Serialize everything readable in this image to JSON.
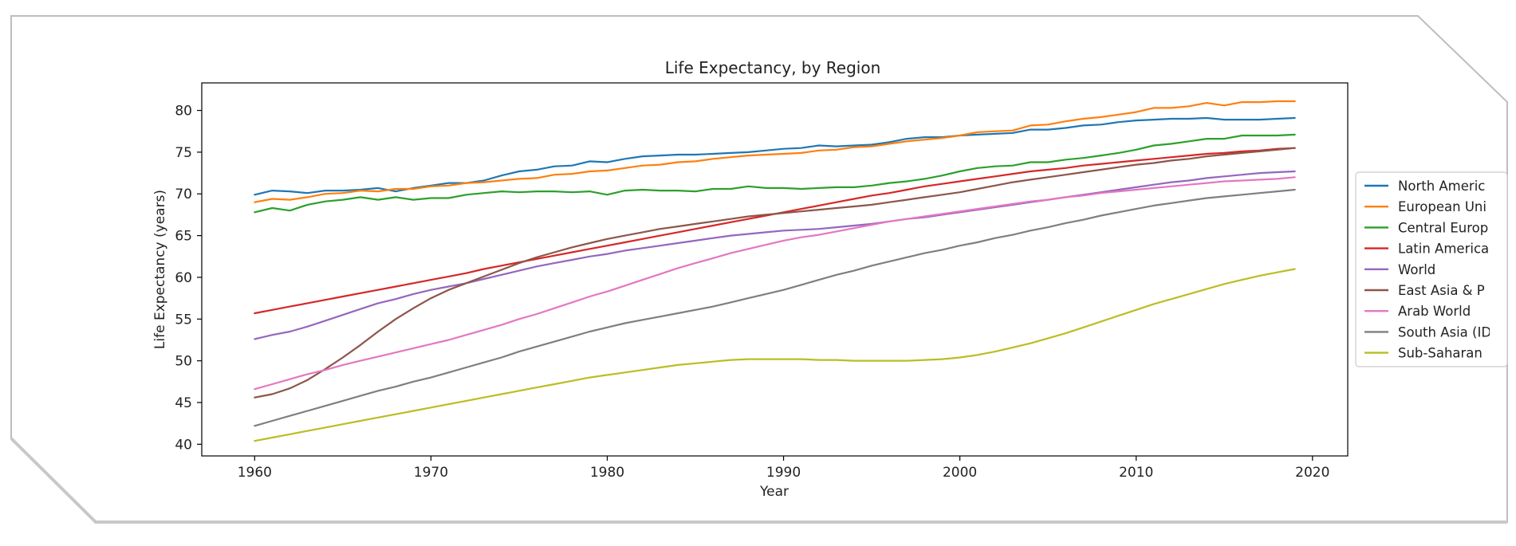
{
  "chart_data": {
    "type": "line",
    "title": "Life Expectancy, by Region",
    "xlabel": "Year",
    "ylabel": "Life Expectancy (years)",
    "xlim": [
      1957,
      2022
    ],
    "ylim": [
      38.6,
      83.3
    ],
    "xticks": [
      1960,
      1970,
      1980,
      1990,
      2000,
      2010,
      2020
    ],
    "yticks": [
      40,
      45,
      50,
      55,
      60,
      65,
      70,
      75,
      80
    ],
    "grid": false,
    "legend_position": "right, outside plot area",
    "x": [
      1960,
      1961,
      1962,
      1963,
      1964,
      1965,
      1966,
      1967,
      1968,
      1969,
      1970,
      1971,
      1972,
      1973,
      1974,
      1975,
      1976,
      1977,
      1978,
      1979,
      1980,
      1981,
      1982,
      1983,
      1984,
      1985,
      1986,
      1987,
      1988,
      1989,
      1990,
      1991,
      1992,
      1993,
      1994,
      1995,
      1996,
      1997,
      1998,
      1999,
      2000,
      2001,
      2002,
      2003,
      2004,
      2005,
      2006,
      2007,
      2008,
      2009,
      2010,
      2011,
      2012,
      2013,
      2014,
      2015,
      2016,
      2017,
      2018,
      2019
    ],
    "series": [
      {
        "name": "North Americ",
        "color": "#1f77b4",
        "values": [
          69.9,
          70.4,
          70.3,
          70.1,
          70.4,
          70.4,
          70.5,
          70.7,
          70.3,
          70.7,
          71.0,
          71.3,
          71.3,
          71.6,
          72.2,
          72.7,
          72.9,
          73.3,
          73.4,
          73.9,
          73.8,
          74.2,
          74.5,
          74.6,
          74.7,
          74.7,
          74.8,
          74.9,
          75.0,
          75.2,
          75.4,
          75.5,
          75.8,
          75.7,
          75.8,
          75.9,
          76.2,
          76.6,
          76.8,
          76.8,
          77.0,
          77.1,
          77.2,
          77.3,
          77.7,
          77.7,
          77.9,
          78.2,
          78.3,
          78.6,
          78.8,
          78.9,
          79.0,
          79.0,
          79.1,
          78.9,
          78.9,
          78.9,
          79.0,
          79.1
        ]
      },
      {
        "name": "European Uni",
        "color": "#ff7f0e",
        "values": [
          69.0,
          69.4,
          69.3,
          69.6,
          70.0,
          70.1,
          70.4,
          70.3,
          70.6,
          70.6,
          70.9,
          71.0,
          71.3,
          71.4,
          71.6,
          71.8,
          71.9,
          72.3,
          72.4,
          72.7,
          72.8,
          73.1,
          73.4,
          73.5,
          73.8,
          73.9,
          74.2,
          74.4,
          74.6,
          74.7,
          74.8,
          74.9,
          75.2,
          75.3,
          75.6,
          75.7,
          76.0,
          76.3,
          76.5,
          76.7,
          77.0,
          77.4,
          77.5,
          77.6,
          78.2,
          78.3,
          78.7,
          79.0,
          79.2,
          79.5,
          79.8,
          80.3,
          80.3,
          80.5,
          80.9,
          80.6,
          81.0,
          81.0,
          81.1,
          81.1
        ]
      },
      {
        "name": "Central Europ",
        "color": "#2ca02c",
        "values": [
          67.8,
          68.3,
          68.0,
          68.7,
          69.1,
          69.3,
          69.6,
          69.3,
          69.6,
          69.3,
          69.5,
          69.5,
          69.9,
          70.1,
          70.3,
          70.2,
          70.3,
          70.3,
          70.2,
          70.3,
          69.9,
          70.4,
          70.5,
          70.4,
          70.4,
          70.3,
          70.6,
          70.6,
          70.9,
          70.7,
          70.7,
          70.6,
          70.7,
          70.8,
          70.8,
          71.0,
          71.3,
          71.5,
          71.8,
          72.2,
          72.7,
          73.1,
          73.3,
          73.4,
          73.8,
          73.8,
          74.1,
          74.3,
          74.6,
          74.9,
          75.3,
          75.8,
          76.0,
          76.3,
          76.6,
          76.6,
          77.0,
          77.0,
          77.0,
          77.1
        ]
      },
      {
        "name": "Latin America",
        "color": "#d62728",
        "values": [
          55.7,
          56.1,
          56.5,
          56.9,
          57.3,
          57.7,
          58.1,
          58.5,
          58.9,
          59.3,
          59.7,
          60.1,
          60.5,
          61.0,
          61.4,
          61.8,
          62.2,
          62.6,
          63.0,
          63.4,
          63.8,
          64.2,
          64.6,
          65.0,
          65.4,
          65.8,
          66.2,
          66.6,
          67.0,
          67.4,
          67.8,
          68.2,
          68.6,
          69.0,
          69.4,
          69.8,
          70.1,
          70.5,
          70.9,
          71.2,
          71.5,
          71.8,
          72.1,
          72.4,
          72.7,
          72.9,
          73.1,
          73.4,
          73.6,
          73.8,
          74.0,
          74.2,
          74.4,
          74.6,
          74.8,
          74.9,
          75.1,
          75.2,
          75.4,
          75.5
        ]
      },
      {
        "name": "World",
        "color": "#9467bd",
        "values": [
          52.6,
          53.1,
          53.5,
          54.1,
          54.8,
          55.5,
          56.2,
          56.9,
          57.4,
          58.0,
          58.5,
          58.9,
          59.3,
          59.8,
          60.3,
          60.8,
          61.3,
          61.7,
          62.1,
          62.5,
          62.8,
          63.2,
          63.5,
          63.8,
          64.1,
          64.4,
          64.7,
          65.0,
          65.2,
          65.4,
          65.6,
          65.7,
          65.8,
          66.0,
          66.2,
          66.4,
          66.7,
          67.0,
          67.2,
          67.5,
          67.8,
          68.1,
          68.4,
          68.7,
          69.0,
          69.3,
          69.6,
          69.9,
          70.2,
          70.5,
          70.8,
          71.1,
          71.4,
          71.6,
          71.9,
          72.1,
          72.3,
          72.5,
          72.6,
          72.7
        ]
      },
      {
        "name": "East Asia & P",
        "color": "#8c564b",
        "values": [
          45.6,
          46.0,
          46.7,
          47.7,
          49.0,
          50.4,
          51.9,
          53.5,
          55.0,
          56.3,
          57.5,
          58.5,
          59.3,
          60.1,
          60.9,
          61.7,
          62.4,
          63.0,
          63.6,
          64.1,
          64.6,
          65.0,
          65.4,
          65.8,
          66.1,
          66.4,
          66.7,
          67.0,
          67.3,
          67.5,
          67.7,
          67.9,
          68.1,
          68.3,
          68.5,
          68.7,
          69.0,
          69.3,
          69.6,
          69.9,
          70.2,
          70.6,
          71.0,
          71.4,
          71.7,
          72.0,
          72.3,
          72.6,
          72.9,
          73.2,
          73.5,
          73.7,
          74.0,
          74.2,
          74.5,
          74.7,
          74.9,
          75.1,
          75.3,
          75.5
        ]
      },
      {
        "name": "Arab World",
        "color": "#e377c2",
        "values": [
          46.6,
          47.2,
          47.8,
          48.4,
          48.9,
          49.5,
          50.0,
          50.5,
          51.0,
          51.5,
          52.0,
          52.5,
          53.1,
          53.7,
          54.3,
          55.0,
          55.6,
          56.3,
          57.0,
          57.7,
          58.3,
          59.0,
          59.7,
          60.4,
          61.1,
          61.7,
          62.3,
          62.9,
          63.4,
          63.9,
          64.4,
          64.8,
          65.1,
          65.5,
          65.9,
          66.3,
          66.7,
          67.0,
          67.3,
          67.6,
          67.9,
          68.2,
          68.5,
          68.8,
          69.1,
          69.3,
          69.6,
          69.8,
          70.1,
          70.3,
          70.5,
          70.7,
          70.9,
          71.1,
          71.3,
          71.5,
          71.6,
          71.7,
          71.8,
          72.0
        ]
      },
      {
        "name": "South Asia (ID",
        "color": "#7f7f7f",
        "values": [
          42.2,
          42.8,
          43.4,
          44.0,
          44.6,
          45.2,
          45.8,
          46.4,
          46.9,
          47.5,
          48.0,
          48.6,
          49.2,
          49.8,
          50.4,
          51.1,
          51.7,
          52.3,
          52.9,
          53.5,
          54.0,
          54.5,
          54.9,
          55.3,
          55.7,
          56.1,
          56.5,
          57.0,
          57.5,
          58.0,
          58.5,
          59.1,
          59.7,
          60.3,
          60.8,
          61.4,
          61.9,
          62.4,
          62.9,
          63.3,
          63.8,
          64.2,
          64.7,
          65.1,
          65.6,
          66.0,
          66.5,
          66.9,
          67.4,
          67.8,
          68.2,
          68.6,
          68.9,
          69.2,
          69.5,
          69.7,
          69.9,
          70.1,
          70.3,
          70.5
        ]
      },
      {
        "name": "Sub-Saharan",
        "color": "#bcbd22",
        "values": [
          40.4,
          40.8,
          41.2,
          41.6,
          42.0,
          42.4,
          42.8,
          43.2,
          43.6,
          44.0,
          44.4,
          44.8,
          45.2,
          45.6,
          46.0,
          46.4,
          46.8,
          47.2,
          47.6,
          48.0,
          48.3,
          48.6,
          48.9,
          49.2,
          49.5,
          49.7,
          49.9,
          50.1,
          50.2,
          50.2,
          50.2,
          50.2,
          50.1,
          50.1,
          50.0,
          50.0,
          50.0,
          50.0,
          50.1,
          50.2,
          50.4,
          50.7,
          51.1,
          51.6,
          52.1,
          52.7,
          53.3,
          54.0,
          54.7,
          55.4,
          56.1,
          56.8,
          57.4,
          58.0,
          58.6,
          59.2,
          59.7,
          60.2,
          60.6,
          61.0
        ]
      }
    ]
  }
}
